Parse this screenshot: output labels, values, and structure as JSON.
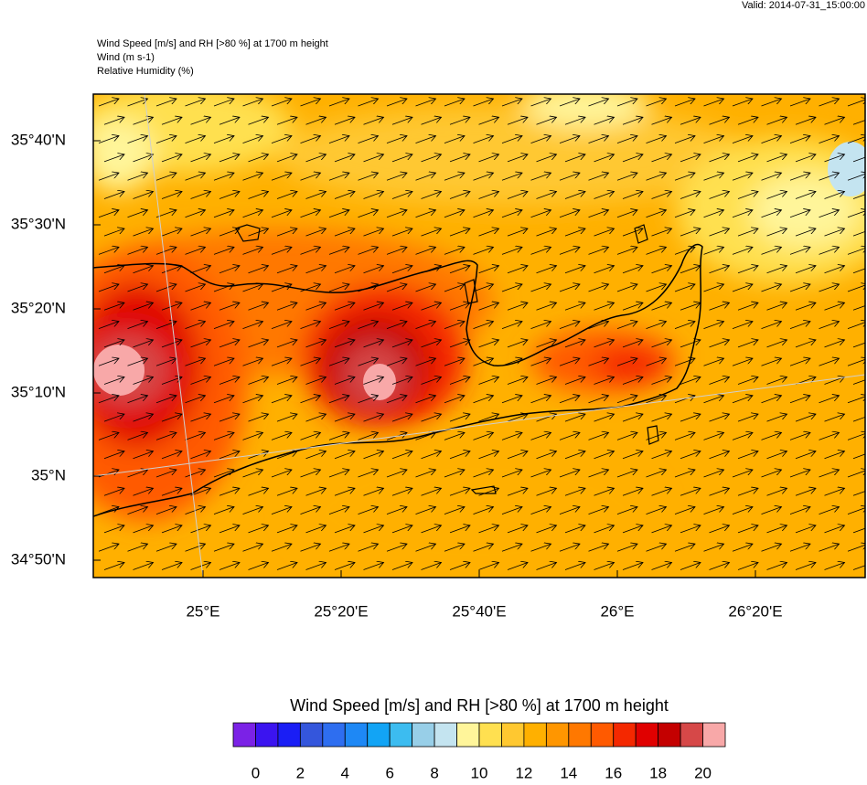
{
  "header": {
    "valid": "Valid: 2014-07-31_15:00:00",
    "lines": [
      "Wind Speed [m/s] and RH [>80 %] at 1700 m height",
      "Wind   (m s-1)",
      "Relative Humidity   (%)"
    ]
  },
  "map": {
    "lat_labels": [
      "35°40'N",
      "35°30'N",
      "35°20'N",
      "35°10'N",
      "35°N",
      "34°50'N"
    ],
    "lon_labels": [
      "25°E",
      "25°20'E",
      "25°40'E",
      "26°E",
      "26°20'E"
    ]
  },
  "colorbar": {
    "title": "Wind Speed [m/s] and RH [>80 %] at 1700 m height",
    "colors": [
      "#7b22e6",
      "#3b14f0",
      "#1a1ef5",
      "#3456dc",
      "#2e6ef0",
      "#1e88f5",
      "#12a4f5",
      "#3cbcf0",
      "#98cfe8",
      "#c4e4f0",
      "#fff59a",
      "#ffe050",
      "#ffc830",
      "#ffb000",
      "#ff9600",
      "#ff7800",
      "#ff5a00",
      "#f42800",
      "#e00000",
      "#c40000",
      "#d64848",
      "#f8a8a8"
    ],
    "labels": [
      0,
      2,
      4,
      6,
      8,
      10,
      12,
      14,
      16,
      18,
      20
    ]
  }
}
